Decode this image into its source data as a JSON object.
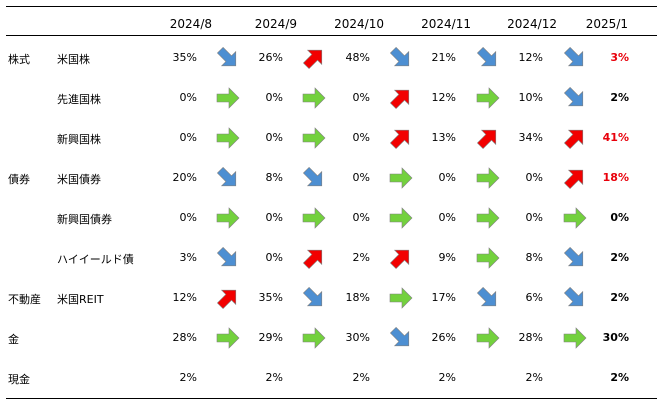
{
  "colors": {
    "down": "#4d8fd2",
    "flat": "#73d13d",
    "up": "#f20000",
    "highlight_text": "#e8000b"
  },
  "table": {
    "months": [
      "2024/8",
      "2024/9",
      "2024/10",
      "2024/11",
      "2024/12",
      "2025/1"
    ],
    "rows": [
      {
        "category": "株式",
        "asset": "米国株",
        "values": [
          "35%",
          "26%",
          "48%",
          "21%",
          "12%",
          "3%"
        ],
        "arrows": [
          "down-icon",
          "up-icon",
          "down-icon",
          "down-icon",
          "down-icon"
        ],
        "last_red": true
      },
      {
        "category": "",
        "asset": "先進国株",
        "values": [
          "0%",
          "0%",
          "0%",
          "12%",
          "10%",
          "2%"
        ],
        "arrows": [
          "flat-icon",
          "flat-icon",
          "up-icon",
          "flat-icon",
          "down-icon"
        ],
        "last_red": false
      },
      {
        "category": "",
        "asset": "新興国株",
        "values": [
          "0%",
          "0%",
          "0%",
          "13%",
          "34%",
          "41%"
        ],
        "arrows": [
          "flat-icon",
          "flat-icon",
          "up-icon",
          "up-icon",
          "up-icon"
        ],
        "last_red": true
      },
      {
        "category": "債券",
        "asset": "米国債券",
        "values": [
          "20%",
          "8%",
          "0%",
          "0%",
          "0%",
          "18%"
        ],
        "arrows": [
          "down-icon",
          "down-icon",
          "flat-icon",
          "flat-icon",
          "up-icon"
        ],
        "last_red": true
      },
      {
        "category": "",
        "asset": "新興国債券",
        "values": [
          "0%",
          "0%",
          "0%",
          "0%",
          "0%",
          "0%"
        ],
        "arrows": [
          "flat-icon",
          "flat-icon",
          "flat-icon",
          "flat-icon",
          "flat-icon"
        ],
        "last_red": false
      },
      {
        "category": "",
        "asset": "ハイイールド債",
        "values": [
          "3%",
          "0%",
          "2%",
          "9%",
          "8%",
          "2%"
        ],
        "arrows": [
          "down-icon",
          "up-icon",
          "up-icon",
          "flat-icon",
          "down-icon"
        ],
        "last_red": false
      },
      {
        "category": "不動産",
        "asset": "米国REIT",
        "values": [
          "12%",
          "35%",
          "18%",
          "17%",
          "6%",
          "2%"
        ],
        "arrows": [
          "up-icon",
          "down-icon",
          "flat-icon",
          "down-icon",
          "down-icon"
        ],
        "last_red": false
      },
      {
        "category": "金",
        "asset": "",
        "values": [
          "28%",
          "29%",
          "30%",
          "26%",
          "28%",
          "30%"
        ],
        "arrows": [
          "flat-icon",
          "flat-icon",
          "down-icon",
          "flat-icon",
          "flat-icon"
        ],
        "last_red": false
      },
      {
        "category": "現金",
        "asset": "",
        "values": [
          "2%",
          "2%",
          "2%",
          "2%",
          "2%",
          "2%"
        ],
        "arrows": [
          "",
          "",
          "",
          "",
          ""
        ],
        "last_red": false
      }
    ]
  }
}
